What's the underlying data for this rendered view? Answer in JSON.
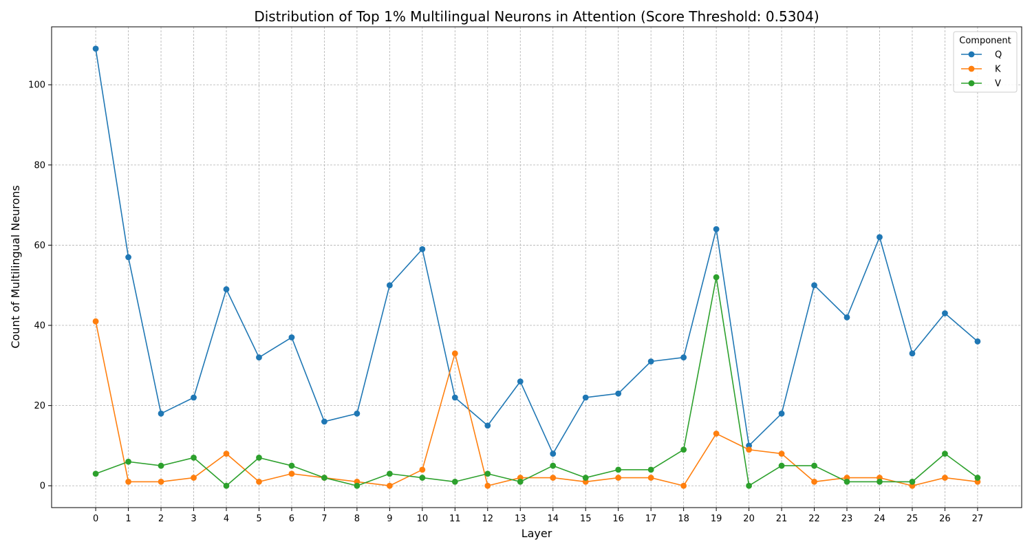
{
  "chart_data": {
    "type": "line",
    "title": "Distribution of Top 1% Multilingual Neurons in Attention (Score Threshold: 0.5304)",
    "xlabel": "Layer",
    "ylabel": "Count of Multilingual Neurons",
    "x": [
      0,
      1,
      2,
      3,
      4,
      5,
      6,
      7,
      8,
      9,
      10,
      11,
      12,
      13,
      14,
      15,
      16,
      17,
      18,
      19,
      20,
      21,
      22,
      23,
      24,
      25,
      26,
      27
    ],
    "xlim": [
      -1.35,
      28.35
    ],
    "ylim": [
      -5.45,
      114.45
    ],
    "yticks": [
      0,
      20,
      40,
      60,
      80,
      100
    ],
    "grid": true,
    "marker": "circle",
    "legend": {
      "title": "Component",
      "position": "top-right"
    },
    "series": [
      {
        "name": "Q",
        "color": "#1f77b4",
        "values": [
          109,
          57,
          18,
          22,
          49,
          32,
          37,
          16,
          18,
          50,
          59,
          22,
          15,
          26,
          8,
          22,
          23,
          31,
          32,
          64,
          10,
          18,
          50,
          42,
          62,
          33,
          43,
          36
        ]
      },
      {
        "name": "K",
        "color": "#ff7f0e",
        "values": [
          41,
          1,
          1,
          2,
          8,
          1,
          3,
          2,
          1,
          0,
          4,
          33,
          0,
          2,
          2,
          1,
          2,
          2,
          0,
          13,
          9,
          8,
          1,
          2,
          2,
          0,
          2,
          1
        ]
      },
      {
        "name": "V",
        "color": "#2ca02c",
        "values": [
          3,
          6,
          5,
          7,
          0,
          7,
          5,
          2,
          0,
          3,
          2,
          1,
          3,
          1,
          5,
          2,
          4,
          4,
          9,
          52,
          0,
          5,
          5,
          1,
          1,
          1,
          8,
          2
        ]
      }
    ]
  }
}
